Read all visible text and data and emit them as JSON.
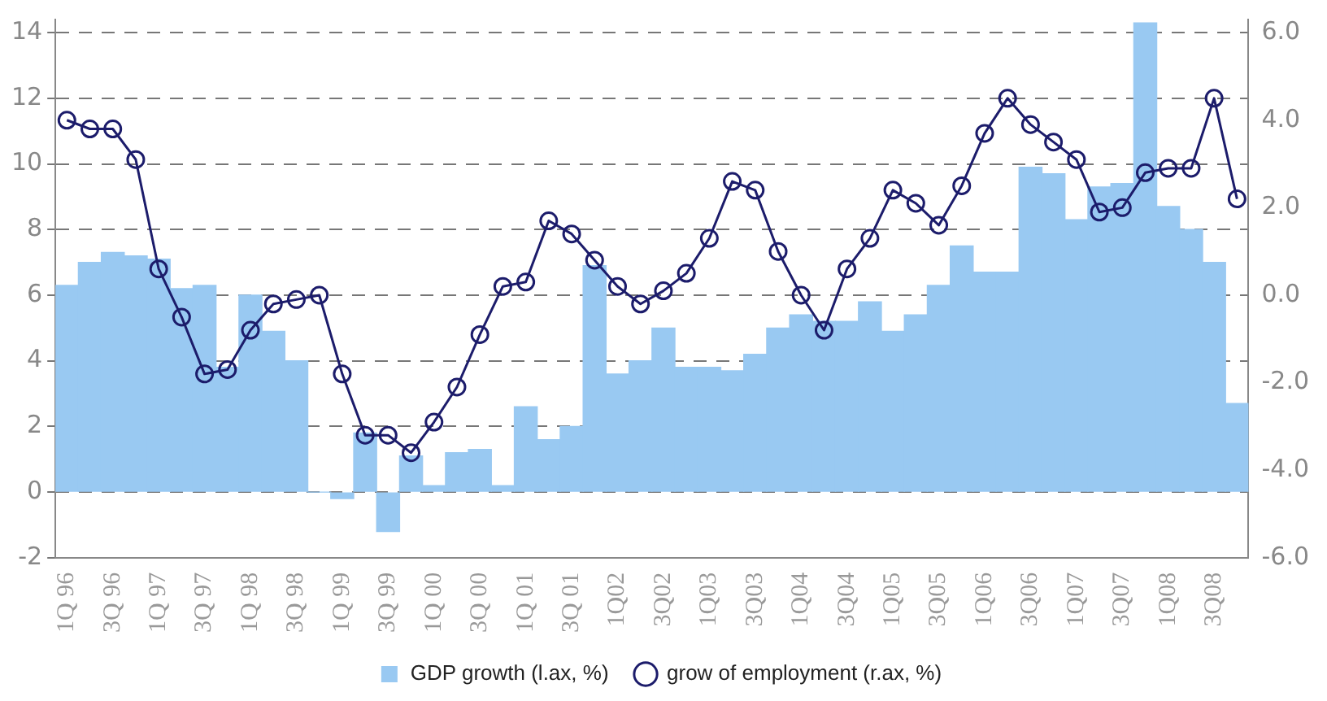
{
  "chart_data": {
    "type": "bar",
    "categories": [
      "1Q 96",
      null,
      "3Q 96",
      null,
      "1Q 97",
      null,
      "3Q 97",
      null,
      "1Q 98",
      null,
      "3Q 98",
      null,
      "1Q 99",
      null,
      "3Q 99",
      null,
      "1Q 00",
      null,
      "3Q 00",
      null,
      "1Q 01",
      null,
      "3Q 01",
      null,
      "1Q02",
      null,
      "3Q02",
      null,
      "1Q03",
      null,
      "3Q03",
      null,
      "1Q04",
      null,
      "3Q04",
      null,
      "1Q05",
      null,
      "3Q05",
      null,
      "1Q06",
      null,
      "3Q06",
      null,
      "1Q07",
      null,
      "3Q07",
      null,
      "1Q08",
      null,
      "3Q08",
      null
    ],
    "series": [
      {
        "name": "GDP growth (l.ax, %)",
        "color": "#99c9f2",
        "values": [
          6.3,
          7.0,
          7.3,
          7.2,
          7.1,
          6.2,
          6.3,
          3.8,
          6.0,
          4.9,
          4.0,
          0.0,
          -0.2,
          1.8,
          -1.2,
          1.1,
          0.2,
          1.2,
          1.3,
          0.2,
          2.6,
          1.6,
          2.0,
          6.9,
          3.6,
          4.0,
          5.0,
          3.8,
          3.8,
          3.7,
          4.2,
          5.0,
          5.4,
          5.2,
          5.2,
          5.8,
          4.9,
          5.4,
          6.3,
          7.5,
          6.7,
          6.7,
          9.9,
          9.7,
          8.3,
          9.3,
          9.4,
          14.3,
          8.7,
          8.0,
          7.0,
          2.7
        ]
      },
      {
        "name": "grow of employment (r.ax, %)",
        "type": "line",
        "axis": "y2",
        "color": "#1c1c6b",
        "values": [
          4.0,
          3.8,
          3.8,
          3.1,
          0.6,
          -0.5,
          -1.8,
          -1.7,
          -0.8,
          -0.2,
          -0.1,
          0.0,
          -1.8,
          -3.2,
          -3.2,
          -3.6,
          -2.9,
          -2.1,
          -0.9,
          0.2,
          0.3,
          1.7,
          1.4,
          0.8,
          0.2,
          -0.2,
          0.1,
          0.5,
          1.3,
          2.6,
          2.4,
          1.0,
          0.0,
          -0.8,
          0.6,
          1.3,
          2.4,
          2.1,
          1.6,
          2.5,
          3.7,
          4.5,
          3.9,
          3.5,
          3.1,
          1.9,
          2.0,
          2.8,
          2.9,
          2.9,
          4.5,
          2.2
        ]
      }
    ],
    "ylim": [
      -2,
      14.4
    ],
    "yticks": [
      -2,
      0,
      2,
      4,
      6,
      8,
      10,
      12,
      14
    ],
    "y2lim": [
      -6,
      6.3
    ],
    "y2ticks": [
      {
        "value": -6,
        "label": "-6.0"
      },
      {
        "value": -4,
        "label": "-4.0"
      },
      {
        "value": -2,
        "label": "-2.0"
      },
      {
        "value": 0,
        "label": "0.0"
      },
      {
        "value": 2,
        "label": "2.0"
      },
      {
        "value": 4,
        "label": "4.0"
      },
      {
        "value": 6,
        "label": "6.0"
      }
    ],
    "grid": "y",
    "legend": "bottom",
    "marker": "circle",
    "line_style": "solid"
  }
}
